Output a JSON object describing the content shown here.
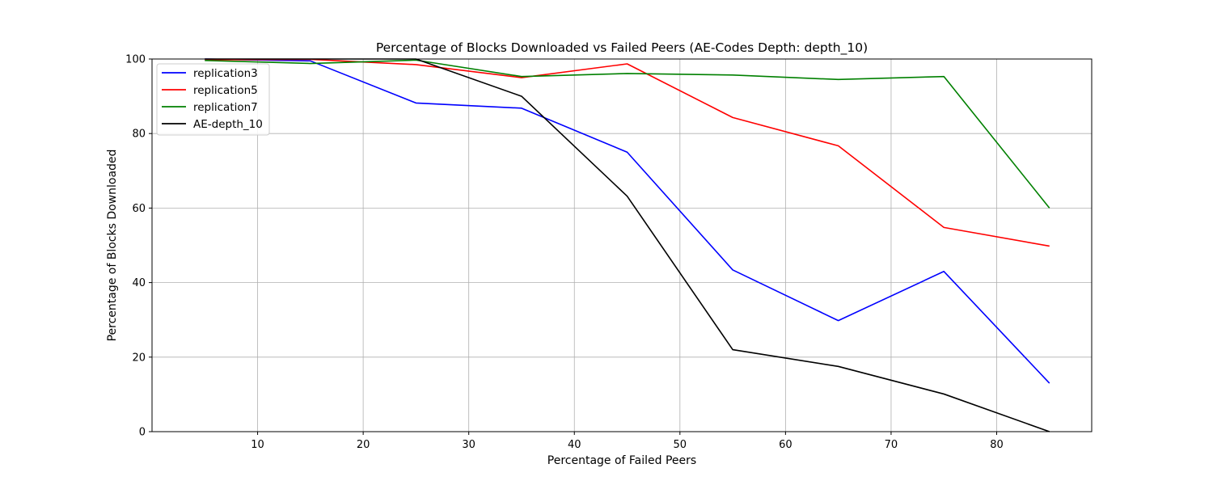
{
  "chart_data": {
    "type": "line",
    "title": "Percentage of Blocks Downloaded vs Failed Peers (AE-Codes Depth: depth_10)",
    "xlabel": "Percentage of Failed Peers",
    "ylabel": "Percentage of Blocks Downloaded",
    "x": [
      5,
      15,
      25,
      35,
      45,
      55,
      65,
      75,
      85
    ],
    "xlim": [
      0,
      89
    ],
    "ylim": [
      0,
      100
    ],
    "xticks": [
      10,
      20,
      30,
      40,
      50,
      60,
      70,
      80
    ],
    "yticks": [
      0,
      20,
      40,
      60,
      80,
      100
    ],
    "grid": true,
    "legend_position": "top-left",
    "series": [
      {
        "name": "replication3",
        "color": "#0000ff",
        "values": [
          100,
          99.5,
          88.2,
          86.8,
          75.0,
          43.4,
          29.8,
          43.0,
          13.0
        ]
      },
      {
        "name": "replication5",
        "color": "#ff0000",
        "values": [
          99.8,
          99.9,
          98.5,
          95.0,
          98.7,
          84.3,
          76.7,
          54.8,
          49.8
        ]
      },
      {
        "name": "replication7",
        "color": "#008000",
        "values": [
          99.6,
          98.8,
          99.7,
          95.3,
          96.1,
          95.7,
          94.5,
          95.3,
          60.0
        ]
      },
      {
        "name": "AE-depth_10",
        "color": "#000000",
        "values": [
          100,
          100,
          100,
          90.0,
          63.2,
          22.0,
          17.5,
          10.1,
          0.0
        ]
      }
    ]
  }
}
